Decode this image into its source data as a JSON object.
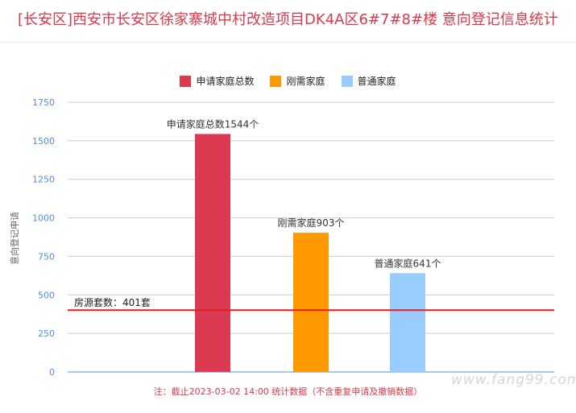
{
  "page_title": "[长安区]西安市长安区徐家寨城中村改造项目DK4A区6#7#8#楼 意向登记信息统计",
  "footnote": "注：截止2023-03-02 14:00 统计数据（不含重复申请及撤销数据）",
  "watermark": "www.fang99.com",
  "chart_data": {
    "type": "bar",
    "title": "",
    "xlabel": "",
    "ylabel": "意向登记申请",
    "ylim": [
      0,
      1750
    ],
    "yticks": [
      0,
      250,
      500,
      750,
      1000,
      1250,
      1500,
      1750
    ],
    "grid": true,
    "legend_position": "top",
    "series": [
      {
        "name": "申请家庭总数",
        "value": 1544,
        "color": "#db3a50",
        "data_label": "申请家庭总数1544个"
      },
      {
        "name": "刚需家庭",
        "value": 903,
        "color": "#ff9900",
        "data_label": "刚需家庭903个"
      },
      {
        "name": "普通家庭",
        "value": 641,
        "color": "#99ccff",
        "data_label": "普通家庭641个"
      }
    ],
    "reference_line": {
      "value": 401,
      "label": "房源套数：401套",
      "color": "#e02020"
    },
    "axis_color": "#4a90e2",
    "grid_color": "#cccccc"
  }
}
